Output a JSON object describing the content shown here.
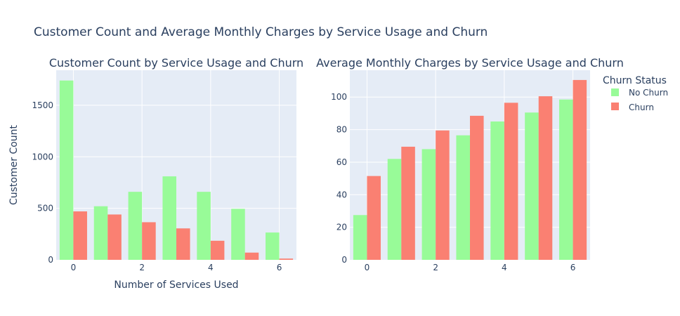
{
  "title": "Customer Count and Average Monthly Charges by Service Usage and Churn",
  "legend": {
    "title": "Churn Status",
    "placement": "top-right",
    "items": [
      {
        "label": "No Churn",
        "color": "#98fb98"
      },
      {
        "label": "Churn",
        "color": "#fa8072"
      }
    ]
  },
  "chart_data": [
    {
      "type": "bar",
      "title": "Customer Count by Service Usage and Churn",
      "xlabel": "Number of Services Used",
      "ylabel": "Customer Count",
      "categories": [
        0,
        1,
        2,
        3,
        4,
        5,
        6
      ],
      "xticks": [
        0,
        2,
        4,
        6
      ],
      "yticks": [
        0,
        500,
        1000,
        1500
      ],
      "ylim": [
        0,
        1840
      ],
      "grid": true,
      "series": [
        {
          "name": "No Churn",
          "color": "#98fb98",
          "values": [
            1740,
            520,
            660,
            810,
            660,
            495,
            265
          ]
        },
        {
          "name": "Churn",
          "color": "#fa8072",
          "values": [
            470,
            440,
            365,
            305,
            185,
            70,
            12
          ]
        }
      ]
    },
    {
      "type": "bar",
      "title": "Average Monthly Charges by Service Usage and Churn",
      "xlabel": "",
      "ylabel": "",
      "categories": [
        0,
        1,
        2,
        3,
        4,
        5,
        6
      ],
      "xticks": [
        0,
        2,
        4,
        6
      ],
      "yticks": [
        0,
        20,
        40,
        60,
        80,
        100
      ],
      "ylim": [
        0,
        116.5
      ],
      "grid": true,
      "series": [
        {
          "name": "No Churn",
          "color": "#98fb98",
          "values": [
            27.5,
            62,
            68,
            76.5,
            85,
            90.5,
            98.5
          ]
        },
        {
          "name": "Churn",
          "color": "#fa8072",
          "values": [
            51.5,
            69.5,
            79.5,
            88.5,
            96.5,
            100.5,
            110.5
          ]
        }
      ]
    }
  ]
}
